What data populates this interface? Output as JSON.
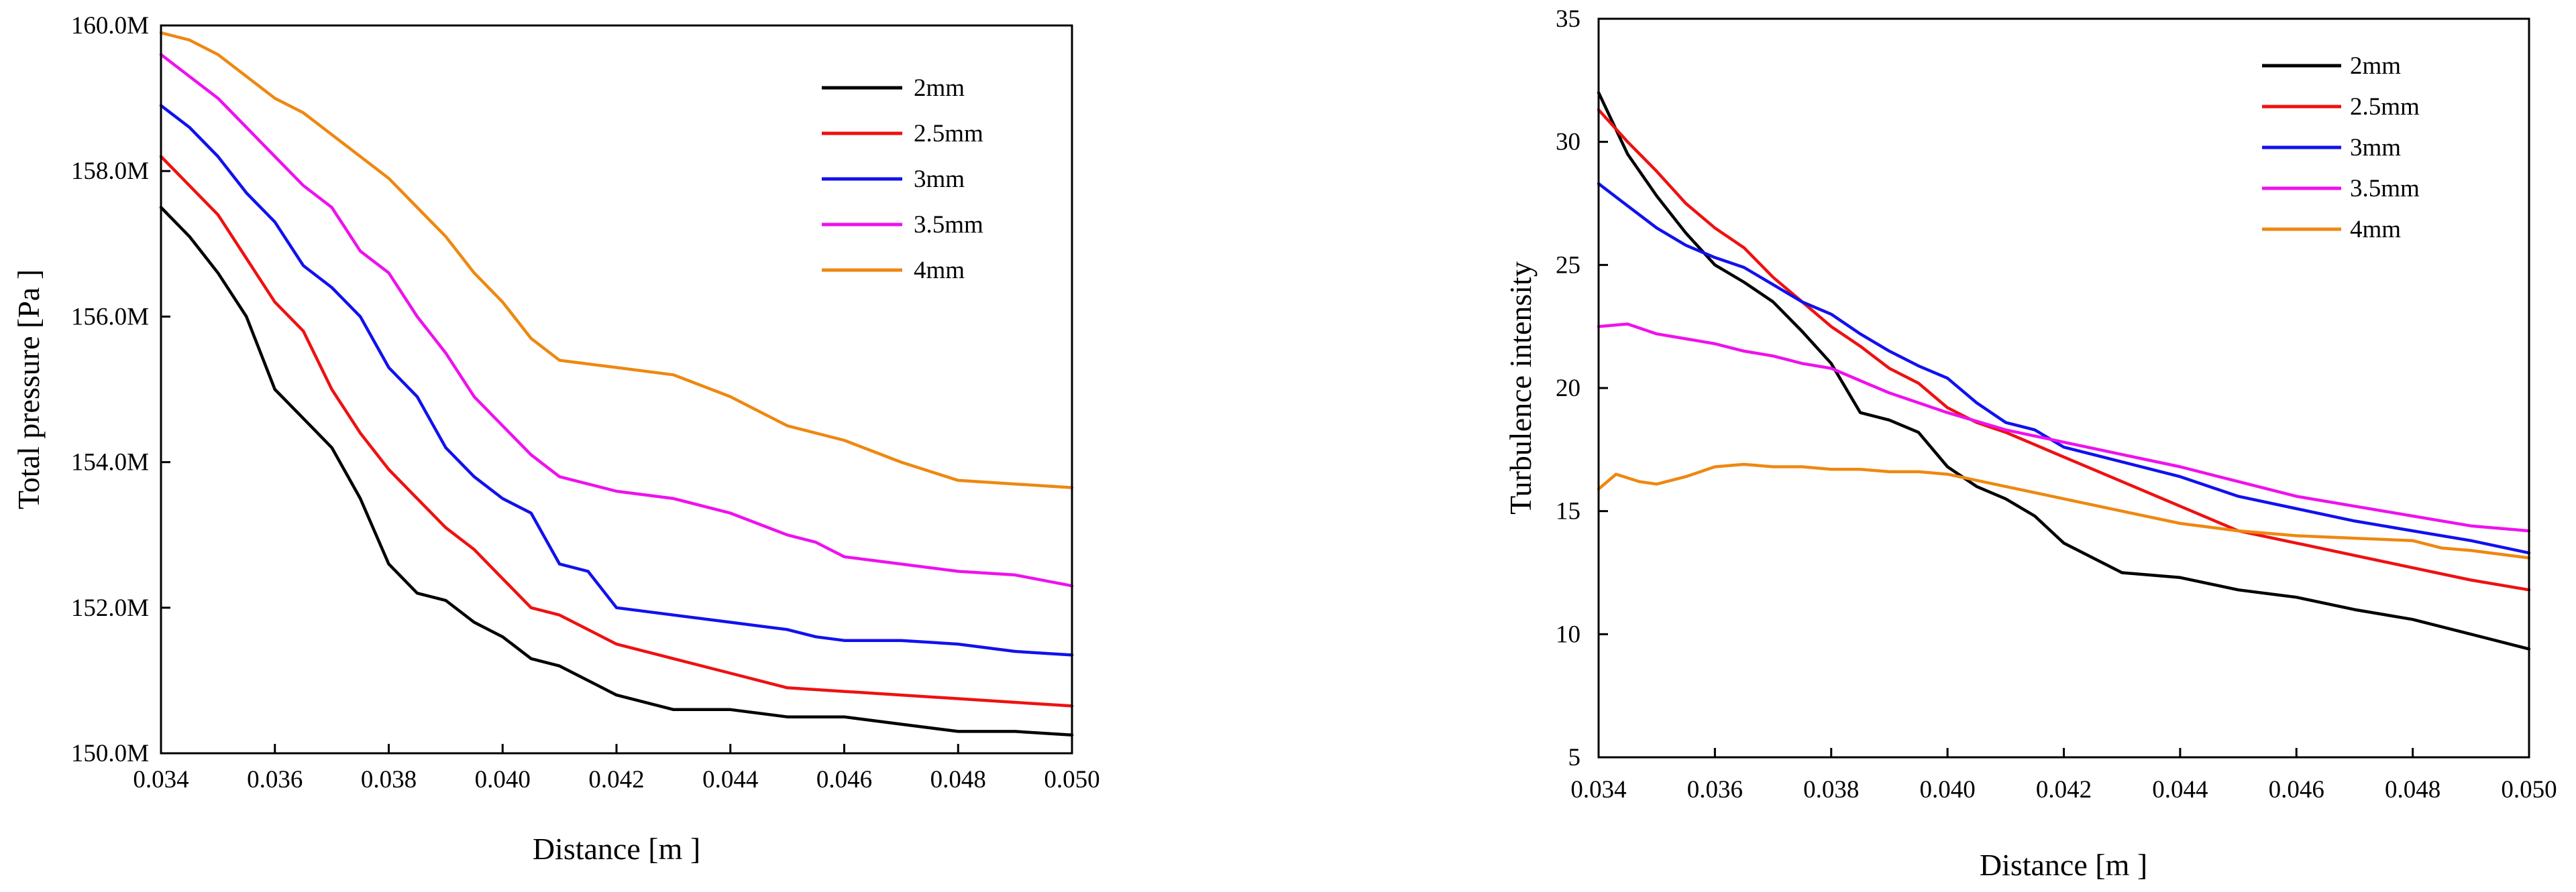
{
  "chart_data": [
    {
      "type": "line",
      "title": "",
      "xlabel": "Distance [m ]",
      "ylabel": "Total pressure [Pa ]",
      "xlim": [
        0.034,
        0.05
      ],
      "ylim": [
        150.0,
        160.0
      ],
      "x_ticks": [
        "0.034",
        "0.036",
        "0.038",
        "0.040",
        "0.042",
        "0.044",
        "0.046",
        "0.048",
        "0.050"
      ],
      "y_ticks": [
        "150.0M",
        "152.0M",
        "154.0M",
        "156.0M",
        "158.0M",
        "160.0M"
      ],
      "legend_position": "top-right",
      "series": [
        {
          "name": "2mm",
          "color": "#000000",
          "x": [
            0.034,
            0.0345,
            0.035,
            0.0355,
            0.036,
            0.0365,
            0.037,
            0.0375,
            0.038,
            0.0385,
            0.039,
            0.0395,
            0.04,
            0.0405,
            0.041,
            0.042,
            0.043,
            0.044,
            0.045,
            0.046,
            0.047,
            0.048,
            0.049,
            0.05
          ],
          "y": [
            157.5,
            157.1,
            156.6,
            156.0,
            155.0,
            154.6,
            154.2,
            153.5,
            152.6,
            152.2,
            152.1,
            151.8,
            151.6,
            151.3,
            151.2,
            150.8,
            150.6,
            150.6,
            150.5,
            150.5,
            150.4,
            150.3,
            150.3,
            150.25
          ]
        },
        {
          "name": "2.5mm",
          "color": "#ee1111",
          "x": [
            0.034,
            0.0345,
            0.035,
            0.0355,
            0.036,
            0.0365,
            0.037,
            0.0375,
            0.038,
            0.0385,
            0.039,
            0.0395,
            0.04,
            0.0405,
            0.041,
            0.042,
            0.043,
            0.044,
            0.045,
            0.046,
            0.047,
            0.048,
            0.049,
            0.05
          ],
          "y": [
            158.2,
            157.8,
            157.4,
            156.8,
            156.2,
            155.8,
            155.0,
            154.4,
            153.9,
            153.5,
            153.1,
            152.8,
            152.4,
            152.0,
            151.9,
            151.5,
            151.3,
            151.1,
            150.9,
            150.85,
            150.8,
            150.75,
            150.7,
            150.65
          ]
        },
        {
          "name": "3mm",
          "color": "#1111ee",
          "x": [
            0.034,
            0.0345,
            0.035,
            0.0355,
            0.036,
            0.0365,
            0.037,
            0.0375,
            0.038,
            0.0385,
            0.039,
            0.0395,
            0.04,
            0.0405,
            0.041,
            0.0415,
            0.042,
            0.043,
            0.044,
            0.045,
            0.0455,
            0.046,
            0.047,
            0.048,
            0.049,
            0.05
          ],
          "y": [
            158.9,
            158.6,
            158.2,
            157.7,
            157.3,
            156.7,
            156.4,
            156.0,
            155.3,
            154.9,
            154.2,
            153.8,
            153.5,
            153.3,
            152.6,
            152.5,
            152.0,
            151.9,
            151.8,
            151.7,
            151.6,
            151.55,
            151.55,
            151.5,
            151.4,
            151.35
          ]
        },
        {
          "name": "3.5mm",
          "color": "#ee11ee",
          "x": [
            0.034,
            0.0345,
            0.035,
            0.0355,
            0.036,
            0.0365,
            0.037,
            0.0375,
            0.038,
            0.0385,
            0.039,
            0.0395,
            0.04,
            0.0405,
            0.041,
            0.042,
            0.043,
            0.044,
            0.045,
            0.0455,
            0.046,
            0.047,
            0.048,
            0.049,
            0.05
          ],
          "y": [
            159.6,
            159.3,
            159.0,
            158.6,
            158.2,
            157.8,
            157.5,
            156.9,
            156.6,
            156.0,
            155.5,
            154.9,
            154.5,
            154.1,
            153.8,
            153.6,
            153.5,
            153.3,
            153.0,
            152.9,
            152.7,
            152.6,
            152.5,
            152.45,
            152.3
          ]
        },
        {
          "name": "4mm",
          "color": "#ee8811",
          "x": [
            0.034,
            0.0345,
            0.035,
            0.0355,
            0.036,
            0.0365,
            0.037,
            0.0375,
            0.038,
            0.0385,
            0.039,
            0.0395,
            0.04,
            0.0405,
            0.041,
            0.042,
            0.043,
            0.044,
            0.045,
            0.046,
            0.047,
            0.048,
            0.049,
            0.05
          ],
          "y": [
            159.9,
            159.8,
            159.6,
            159.3,
            159.0,
            158.8,
            158.5,
            158.2,
            157.9,
            157.5,
            157.1,
            156.6,
            156.2,
            155.7,
            155.4,
            155.3,
            155.2,
            154.9,
            154.5,
            154.3,
            154.0,
            153.75,
            153.7,
            153.65
          ]
        }
      ]
    },
    {
      "type": "line",
      "title": "",
      "xlabel": "Distance [m ]",
      "ylabel": "Turbulence intensity",
      "xlim": [
        0.034,
        0.05
      ],
      "ylim": [
        5,
        35
      ],
      "x_ticks": [
        "0.034",
        "0.036",
        "0.038",
        "0.040",
        "0.042",
        "0.044",
        "0.046",
        "0.048",
        "0.050"
      ],
      "y_ticks": [
        "5",
        "10",
        "15",
        "20",
        "25",
        "30",
        "35"
      ],
      "legend_position": "top-right",
      "series": [
        {
          "name": "2mm",
          "color": "#000000",
          "x": [
            0.034,
            0.0345,
            0.035,
            0.0355,
            0.036,
            0.0365,
            0.037,
            0.0375,
            0.038,
            0.0385,
            0.039,
            0.0395,
            0.04,
            0.0405,
            0.041,
            0.0415,
            0.042,
            0.043,
            0.044,
            0.045,
            0.046,
            0.047,
            0.048,
            0.049,
            0.05
          ],
          "y": [
            32.0,
            29.5,
            27.8,
            26.3,
            25.0,
            24.3,
            23.5,
            22.3,
            21.0,
            19.0,
            18.7,
            18.2,
            16.8,
            16.0,
            15.5,
            14.8,
            13.7,
            12.5,
            12.3,
            11.8,
            11.5,
            11.0,
            10.6,
            10.0,
            9.4
          ]
        },
        {
          "name": "2.5mm",
          "color": "#ee1111",
          "x": [
            0.034,
            0.0345,
            0.035,
            0.0355,
            0.036,
            0.0365,
            0.037,
            0.0375,
            0.038,
            0.0385,
            0.039,
            0.0395,
            0.04,
            0.0405,
            0.041,
            0.042,
            0.043,
            0.044,
            0.045,
            0.046,
            0.047,
            0.048,
            0.049,
            0.05
          ],
          "y": [
            31.3,
            30.0,
            28.8,
            27.5,
            26.5,
            25.7,
            24.5,
            23.5,
            22.5,
            21.7,
            20.8,
            20.2,
            19.2,
            18.6,
            18.2,
            17.2,
            16.2,
            15.2,
            14.2,
            13.7,
            13.2,
            12.7,
            12.2,
            11.8
          ]
        },
        {
          "name": "3mm",
          "color": "#1111ee",
          "x": [
            0.034,
            0.0345,
            0.035,
            0.0355,
            0.036,
            0.0365,
            0.037,
            0.0375,
            0.038,
            0.0385,
            0.039,
            0.0395,
            0.04,
            0.0405,
            0.041,
            0.0415,
            0.042,
            0.043,
            0.044,
            0.045,
            0.046,
            0.047,
            0.048,
            0.049,
            0.05
          ],
          "y": [
            28.3,
            27.4,
            26.5,
            25.8,
            25.3,
            24.9,
            24.2,
            23.5,
            23.0,
            22.2,
            21.5,
            20.9,
            20.4,
            19.4,
            18.6,
            18.3,
            17.6,
            17.0,
            16.4,
            15.6,
            15.1,
            14.6,
            14.2,
            13.8,
            13.3
          ]
        },
        {
          "name": "3.5mm",
          "color": "#ee11ee",
          "x": [
            0.034,
            0.0345,
            0.035,
            0.0355,
            0.036,
            0.0365,
            0.037,
            0.0375,
            0.038,
            0.0385,
            0.039,
            0.0395,
            0.04,
            0.041,
            0.042,
            0.043,
            0.044,
            0.045,
            0.046,
            0.047,
            0.048,
            0.049,
            0.05
          ],
          "y": [
            22.5,
            22.6,
            22.2,
            22.0,
            21.8,
            21.5,
            21.3,
            21.0,
            20.8,
            20.3,
            19.8,
            19.4,
            19.0,
            18.3,
            17.8,
            17.3,
            16.8,
            16.2,
            15.6,
            15.2,
            14.8,
            14.4,
            14.2
          ]
        },
        {
          "name": "4mm",
          "color": "#ee8811",
          "x": [
            0.034,
            0.0343,
            0.0347,
            0.035,
            0.0355,
            0.036,
            0.0365,
            0.037,
            0.0375,
            0.038,
            0.0385,
            0.039,
            0.0395,
            0.04,
            0.041,
            0.042,
            0.043,
            0.044,
            0.045,
            0.046,
            0.047,
            0.048,
            0.0485,
            0.049,
            0.05
          ],
          "y": [
            15.9,
            16.5,
            16.2,
            16.1,
            16.4,
            16.8,
            16.9,
            16.8,
            16.8,
            16.7,
            16.7,
            16.6,
            16.6,
            16.5,
            16.0,
            15.5,
            15.0,
            14.5,
            14.2,
            14.0,
            13.9,
            13.8,
            13.5,
            13.4,
            13.1
          ]
        }
      ]
    }
  ]
}
